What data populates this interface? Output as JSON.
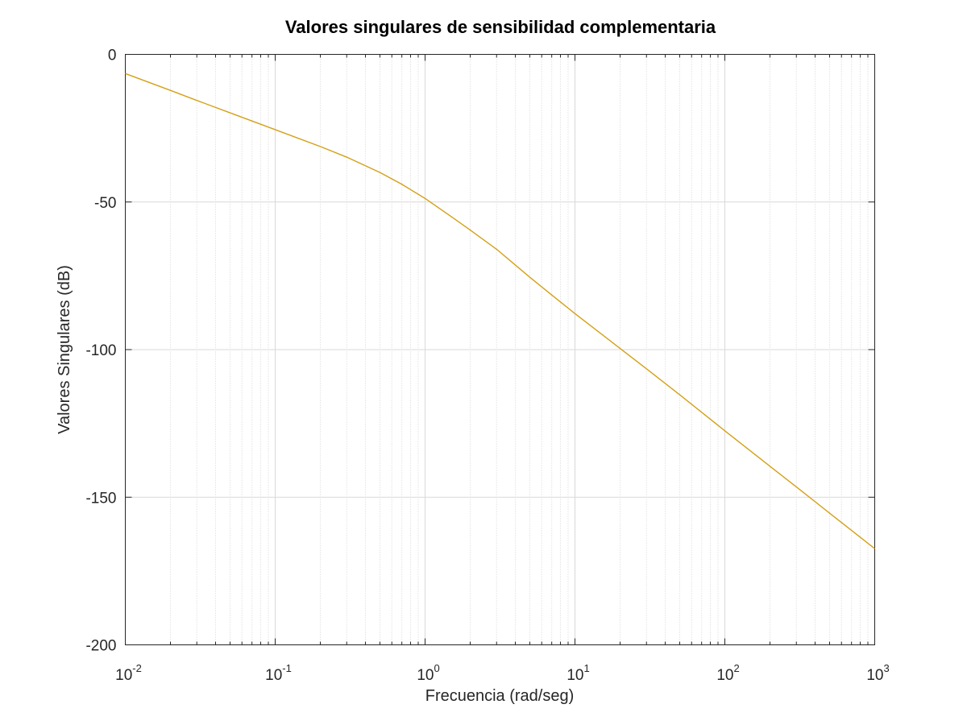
{
  "chart_data": {
    "type": "line",
    "title": "Valores singulares de sensibilidad complementaria",
    "xlabel": "Frecuencia (rad/seg)",
    "ylabel": "Valores Singulares (dB)",
    "xscale": "log",
    "xlim": [
      0.01,
      1000
    ],
    "ylim": [
      -200,
      0
    ],
    "grid": true,
    "x_ticks": [
      {
        "base": "10",
        "exp": "-2"
      },
      {
        "base": "10",
        "exp": "-1"
      },
      {
        "base": "10",
        "exp": "0"
      },
      {
        "base": "10",
        "exp": "1"
      },
      {
        "base": "10",
        "exp": "2"
      },
      {
        "base": "10",
        "exp": "3"
      }
    ],
    "y_ticks": [
      "0",
      "-50",
      "-100",
      "-150",
      "-200"
    ],
    "series": [
      {
        "color": "#D4A017",
        "x": [
          0.01,
          0.02,
          0.03,
          0.05,
          0.1,
          0.2,
          0.3,
          0.5,
          0.7,
          1,
          1.5,
          2,
          3,
          5,
          7,
          10,
          20,
          30,
          50,
          100,
          200,
          300,
          500,
          1000
        ],
        "y": [
          -6.5,
          -12.2,
          -15.6,
          -19.8,
          -25.5,
          -31.2,
          -34.8,
          -40,
          -44,
          -48.8,
          -55,
          -59.5,
          -66,
          -75.5,
          -81.5,
          -87.8,
          -99.6,
          -106.5,
          -115.3,
          -127.5,
          -139.5,
          -146.5,
          -155.4,
          -167.4
        ]
      }
    ]
  }
}
